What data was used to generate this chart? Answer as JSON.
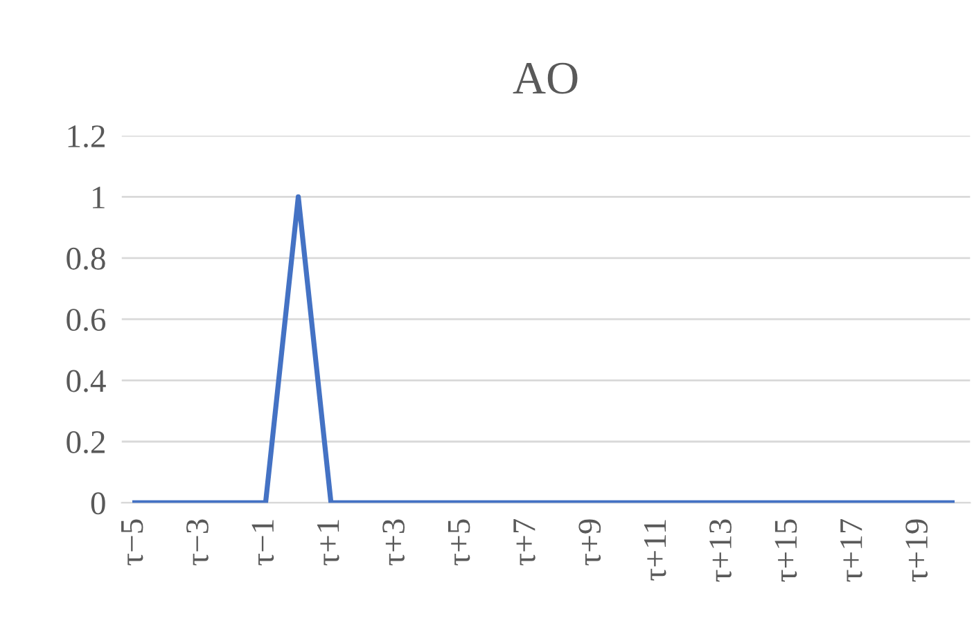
{
  "chart_data": {
    "type": "line",
    "title": "AO",
    "categories": [
      "τ−5",
      null,
      "τ−3",
      null,
      "τ−1",
      null,
      "τ+1",
      null,
      "τ+3",
      null,
      "τ+5",
      null,
      "τ+7",
      null,
      "τ+9",
      null,
      "τ+11",
      null,
      "τ+13",
      null,
      "τ+15",
      null,
      "τ+17",
      null,
      "τ+19",
      null
    ],
    "series": [
      {
        "color": "#4472c4",
        "values": [
          0,
          0,
          0,
          0,
          0,
          1,
          0,
          0,
          0,
          0,
          0,
          0,
          0,
          0,
          0,
          0,
          0,
          0,
          0,
          0,
          0,
          0,
          0,
          0,
          0,
          0
        ]
      }
    ],
    "ylim": [
      0,
      1.2
    ],
    "yticks": [
      0,
      0.2,
      0.4,
      0.6,
      0.8,
      1,
      1.2
    ],
    "grid": "y",
    "legend": false,
    "marker": "none",
    "line_style": "solid"
  }
}
